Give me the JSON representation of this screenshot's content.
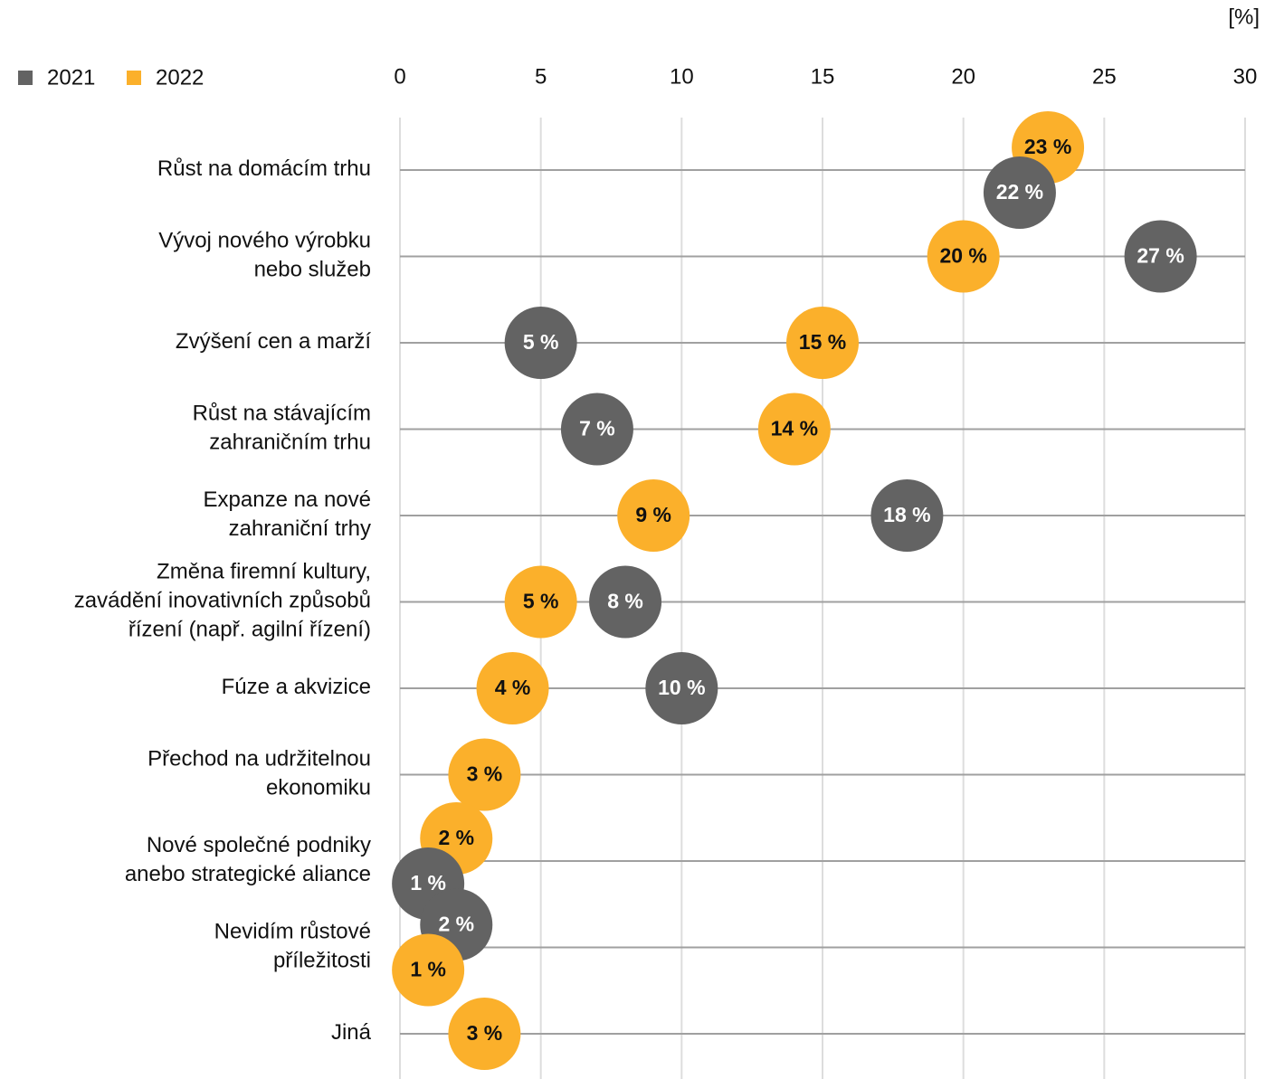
{
  "chart_data": {
    "type": "dot",
    "unit_label": "[%]",
    "categories": [
      "Růst na domácím trhu",
      "Vývoj nového výrobku\nnebo služeb",
      "Zvýšení cen a marží",
      "Růst na stávajícím\nzahraničním trhu",
      "Expanze na nové\nzahraniční trhy",
      "Změna firemní kultury,\nzavádění inovativních způsobů\nřízení (např. agilní řízení)",
      "Fúze a akvizice",
      "Přechod na udržitelnou\nekonomiku",
      "Nové společné podniky\nanebo strategické aliance",
      "Nevidím růstové\npříležitosti",
      "Jiná"
    ],
    "series": [
      {
        "name": "2021",
        "color": "#636363",
        "label_color": "#ffffff",
        "values": [
          22,
          27,
          5,
          7,
          18,
          8,
          10,
          null,
          1,
          2,
          null
        ],
        "value_labels": [
          "22 %",
          "27 %",
          "5 %",
          "7 %",
          "18 %",
          "8 %",
          "10 %",
          null,
          "1 %",
          "2 %",
          null
        ]
      },
      {
        "name": "2022",
        "color": "#fbb02b",
        "label_color": "#111111",
        "values": [
          23,
          20,
          15,
          14,
          9,
          5,
          4,
          3,
          2,
          1,
          3
        ],
        "value_labels": [
          "23 %",
          "20 %",
          "15 %",
          "14 %",
          "9 %",
          "5 %",
          "4 %",
          "3 %",
          "2 %",
          "1 %",
          "3 %"
        ]
      }
    ],
    "xlim": [
      0,
      30
    ],
    "xticks": [
      0,
      5,
      10,
      15,
      20,
      25,
      30
    ],
    "grid": true
  }
}
